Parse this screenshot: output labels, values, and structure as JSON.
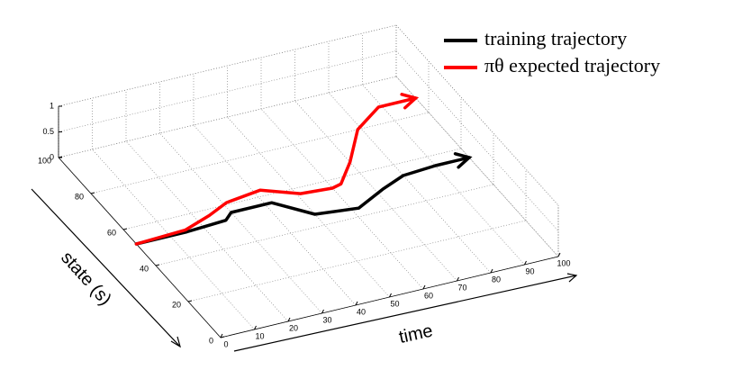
{
  "chart_data": {
    "type": "line3d",
    "xlabel": "time",
    "ylabel": "state (s)",
    "xlim": [
      0,
      100
    ],
    "xticks": [
      0,
      10,
      20,
      30,
      40,
      50,
      60,
      70,
      80,
      90,
      100
    ],
    "ylim": [
      0,
      100
    ],
    "yticks": [
      0,
      20,
      40,
      60,
      80,
      100
    ],
    "zlim": [
      0,
      1
    ],
    "zticks": [
      0,
      0.5,
      1
    ],
    "grid": true,
    "legend": "upper right",
    "series": [
      {
        "name": "training trajectory",
        "color": "#000000",
        "x": [
          0,
          15,
          27,
          30,
          42,
          50,
          62,
          72,
          80,
          90,
          100
        ],
        "values": [
          52,
          52,
          53,
          56,
          56,
          46,
          44,
          50,
          54,
          55,
          55
        ]
      },
      {
        "name": "πθ expected trajectory",
        "color": "#ff0000",
        "x": [
          0,
          15,
          24,
          31,
          42,
          51,
          60,
          63,
          70,
          79,
          89,
          100
        ],
        "values": [
          52,
          53,
          57,
          61,
          63,
          57,
          56,
          57,
          66,
          80,
          88,
          88
        ]
      }
    ]
  }
}
